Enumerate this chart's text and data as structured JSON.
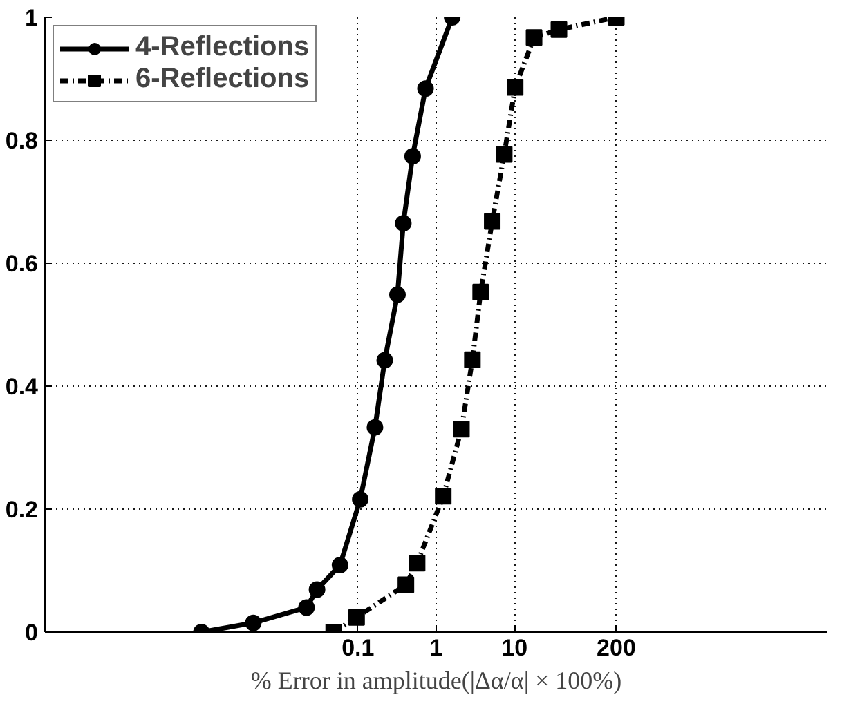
{
  "chart_data": {
    "type": "line",
    "xlabel": "% Error in amplitude(|Δα/α| × 100%)",
    "log": "x",
    "xlim": [
      1e-05,
      100000
    ],
    "xticks": [
      0.1,
      1,
      10,
      200
    ],
    "ylim": [
      0,
      1
    ],
    "yticks": [
      0,
      0.2,
      0.4,
      0.6,
      0.8,
      1
    ],
    "grid": true,
    "legend": "top left",
    "series": [
      {
        "name": "4-Reflections",
        "color": "#000000",
        "marker": "circle",
        "line_style": "solid",
        "x": [
          0.001,
          0.0046,
          0.022,
          0.03,
          0.059,
          0.107,
          0.165,
          0.22,
          0.32,
          0.38,
          0.5,
          0.73,
          1.6
        ],
        "values": [
          0,
          0.015,
          0.04,
          0.069,
          0.109,
          0.216,
          0.333,
          0.442,
          0.549,
          0.665,
          0.774,
          0.884,
          1.0
        ]
      },
      {
        "name": "6-Reflections",
        "color": "#000000",
        "marker": "square",
        "line_style": "dashdot",
        "x": [
          0.049,
          0.096,
          0.41,
          0.57,
          1.23,
          2.1,
          2.9,
          3.7,
          5.2,
          7.4,
          10.2,
          17.8,
          37,
          200
        ],
        "values": [
          0,
          0.024,
          0.077,
          0.112,
          0.221,
          0.33,
          0.443,
          0.553,
          0.668,
          0.777,
          0.886,
          0.967,
          0.98,
          1.0
        ]
      }
    ]
  }
}
